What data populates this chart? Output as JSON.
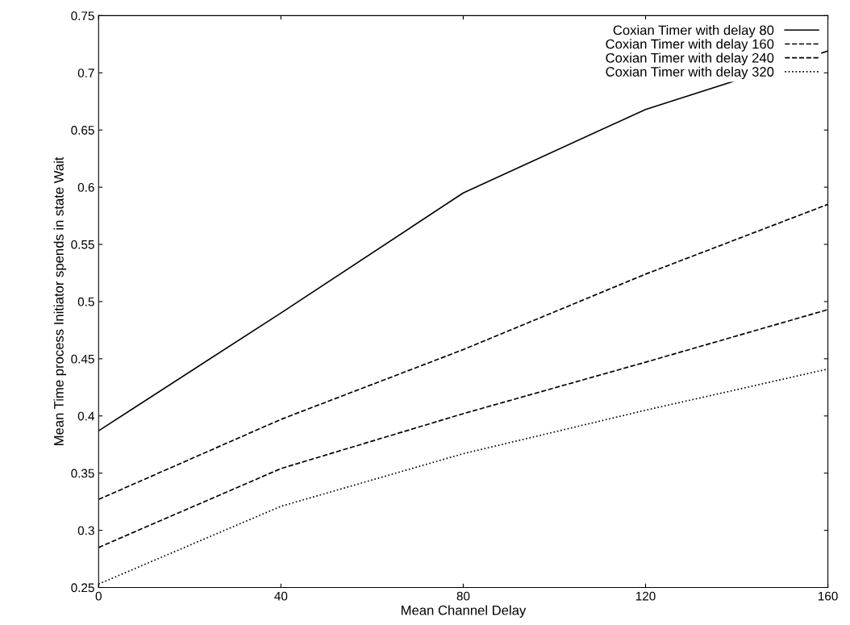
{
  "chart_data": {
    "type": "line",
    "xlabel": "Mean Channel Delay",
    "ylabel": "Mean Time process Initiator spends in state Wait",
    "x": [
      0,
      40,
      80,
      120,
      160
    ],
    "series": [
      {
        "name": "Coxian Timer with delay 80",
        "color": "#000000",
        "line_style": "solid",
        "values": [
          0.387,
          0.49,
          0.595,
          0.668,
          0.719
        ]
      },
      {
        "name": "Coxian Timer with delay 160",
        "color": "#000000",
        "line_style": "dashed",
        "values": [
          0.327,
          0.397,
          0.458,
          0.524,
          0.585
        ]
      },
      {
        "name": "Coxian Timer with delay 240",
        "color": "#000000",
        "line_style": "dashed",
        "values": [
          0.285,
          0.354,
          0.402,
          0.447,
          0.493
        ]
      },
      {
        "name": "Coxian Timer with delay 320",
        "color": "#000000",
        "line_style": "dotted",
        "values": [
          0.253,
          0.321,
          0.367,
          0.405,
          0.441
        ]
      }
    ],
    "xlim": [
      0,
      160
    ],
    "xticks": [
      0,
      40,
      80,
      120,
      160
    ],
    "ylim": [
      0.25,
      0.75
    ],
    "yticks": [
      0.25,
      0.3,
      0.35,
      0.4,
      0.45,
      0.5,
      0.55,
      0.6,
      0.65,
      0.7,
      0.75
    ],
    "grid": false,
    "legend": "top right",
    "marker": "none"
  }
}
